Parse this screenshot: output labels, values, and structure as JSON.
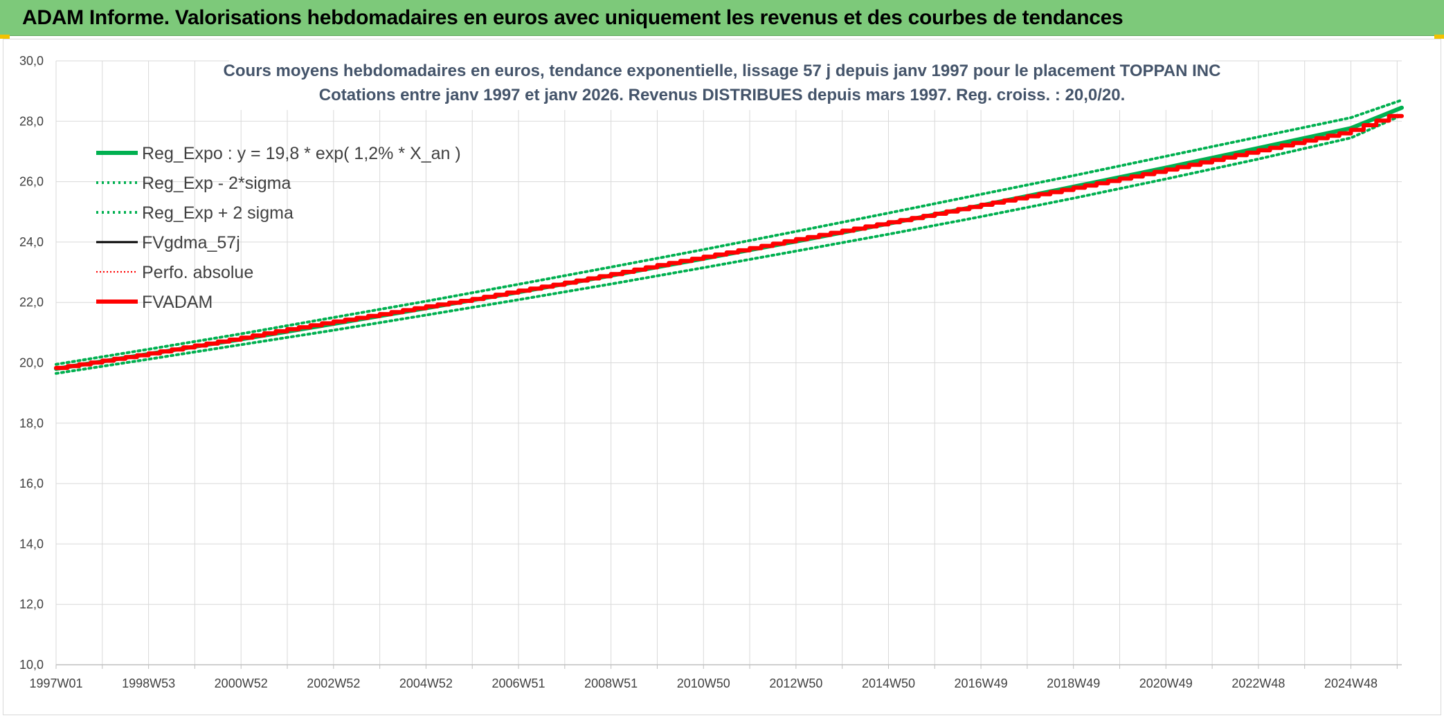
{
  "header": {
    "title": "ADAM Informe. Valorisations hebdomadaires en euros avec uniquement les revenus et des courbes de tendances"
  },
  "colors": {
    "banner": "#7dc97a",
    "reg_expo": "#00b050",
    "sigma_bands": "#00b050",
    "fvgdma": "#000000",
    "perfo": "#ff0000",
    "fvadam": "#ff0000",
    "grid": "#d9d9d9"
  },
  "chart_data": {
    "type": "line",
    "title": "Cours moyens hebdomadaires en euros, tendance exponentielle, lissage 57 j depuis janv 1997 pour le placement TOPPAN INC",
    "subtitle": "Cotations entre janv 1997 et janv 2026. Revenus DISTRIBUES depuis mars 1997. Reg. croiss. : 20,0/20.",
    "xlabel": "",
    "ylabel": "",
    "ylim": [
      10,
      30
    ],
    "yticks": [
      "10,0",
      "12,0",
      "14,0",
      "16,0",
      "18,0",
      "20,0",
      "22,0",
      "24,0",
      "26,0",
      "28,0",
      "30,0"
    ],
    "xlim": [
      1997.0,
      2026.1
    ],
    "xticks": [
      {
        "label": "1997W01",
        "year": 1997.0
      },
      {
        "label": "1998W53",
        "year": 1999.0
      },
      {
        "label": "2000W52",
        "year": 2001.0
      },
      {
        "label": "2002W52",
        "year": 2003.0
      },
      {
        "label": "2004W52",
        "year": 2005.0
      },
      {
        "label": "2006W51",
        "year": 2007.0
      },
      {
        "label": "2008W51",
        "year": 2009.0
      },
      {
        "label": "2010W50",
        "year": 2011.0
      },
      {
        "label": "2012W50",
        "year": 2013.0
      },
      {
        "label": "2014W50",
        "year": 2015.0
      },
      {
        "label": "2016W49",
        "year": 2017.0
      },
      {
        "label": "2018W49",
        "year": 2019.0
      },
      {
        "label": "2020W49",
        "year": 2021.0
      },
      {
        "label": "2022W48",
        "year": 2023.0
      },
      {
        "label": "2024W48",
        "year": 2025.0
      }
    ],
    "grid": true,
    "legend_position": "top-left",
    "legend": [
      {
        "label": "Reg_Expo : y = 19,8 * exp( 1,2% *  X_an )",
        "style": "solid-thick",
        "color": "#00b050"
      },
      {
        "label": "Reg_Exp - 2*sigma",
        "style": "dotted",
        "color": "#00b050"
      },
      {
        "label": "Reg_Exp + 2 sigma",
        "style": "dotted",
        "color": "#00b050"
      },
      {
        "label": "FVgdma_57j",
        "style": "solid",
        "color": "#000000"
      },
      {
        "label": "Perfo. absolue",
        "style": "dotted-thin",
        "color": "#ff0000"
      },
      {
        "label": "FVADAM",
        "style": "solid-thick",
        "color": "#ff0000"
      }
    ],
    "series": [
      {
        "name": "Reg_Expo : y = 19,8 * exp( 1,2% *  X_an )",
        "x": [
          1997,
          1999,
          2001,
          2003,
          2005,
          2007,
          2009,
          2011,
          2013,
          2015,
          2017,
          2019,
          2021,
          2023,
          2025,
          2026.1
        ],
        "values": [
          19.8,
          20.29,
          20.78,
          21.29,
          21.81,
          22.34,
          22.89,
          23.45,
          24.02,
          24.61,
          25.21,
          25.83,
          26.46,
          27.11,
          27.77,
          28.45
        ]
      },
      {
        "name": "Reg_Exp - 2*sigma",
        "x": [
          1997,
          1999,
          2001,
          2003,
          2005,
          2007,
          2009,
          2011,
          2013,
          2015,
          2017,
          2019,
          2021,
          2023,
          2025,
          2026.1
        ],
        "values": [
          19.65,
          20.12,
          20.6,
          21.08,
          21.58,
          22.09,
          22.61,
          23.15,
          23.7,
          24.26,
          24.84,
          25.45,
          26.09,
          26.75,
          27.45,
          28.2
        ]
      },
      {
        "name": "Reg_Exp + 2 sigma",
        "x": [
          1997,
          1999,
          2001,
          2003,
          2005,
          2007,
          2009,
          2011,
          2013,
          2015,
          2017,
          2019,
          2021,
          2023,
          2025,
          2026.1
        ],
        "values": [
          19.95,
          20.45,
          20.96,
          21.5,
          22.04,
          22.6,
          23.17,
          23.75,
          24.35,
          24.96,
          25.58,
          26.2,
          26.84,
          27.48,
          28.12,
          28.7
        ]
      },
      {
        "name": "FVADAM",
        "x": [
          1997,
          1998,
          1999,
          2000,
          2001,
          2002,
          2003,
          2004,
          2005,
          2006,
          2007,
          2008,
          2009,
          2010,
          2011,
          2012,
          2013,
          2014,
          2015,
          2016,
          2017,
          2018,
          2019,
          2020,
          2021,
          2022,
          2023,
          2024,
          2025,
          2026.1
        ],
        "values": [
          19.8,
          20.04,
          20.28,
          20.54,
          20.8,
          21.08,
          21.34,
          21.58,
          21.84,
          22.08,
          22.36,
          22.62,
          22.9,
          23.2,
          23.48,
          23.76,
          24.06,
          24.34,
          24.62,
          24.9,
          25.2,
          25.48,
          25.76,
          26.06,
          26.36,
          26.68,
          27.0,
          27.32,
          27.64,
          28.25
        ]
      }
    ]
  }
}
